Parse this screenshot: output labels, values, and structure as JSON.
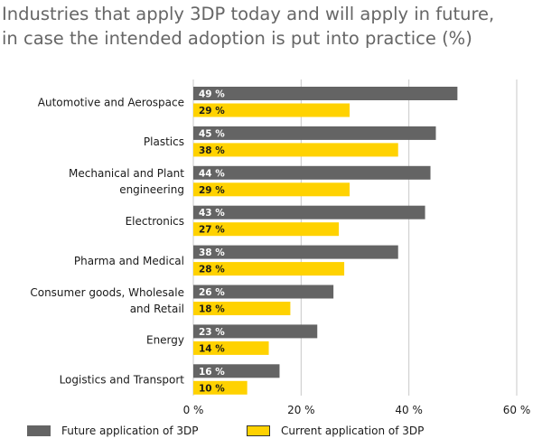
{
  "chart_data": {
    "type": "bar",
    "orientation": "horizontal",
    "title_lines": [
      "Industries that apply 3DP today and will apply in future,",
      "in case the intended adoption is put into practice (%)"
    ],
    "categories": [
      [
        "Automotive and Aerospace"
      ],
      [
        "Plastics"
      ],
      [
        "Mechanical and Plant",
        "engineering"
      ],
      [
        "Electronics"
      ],
      [
        "Pharma and Medical"
      ],
      [
        "Consumer goods, Wholesale",
        "and Retail"
      ],
      [
        "Energy"
      ],
      [
        "Logistics and Transport"
      ]
    ],
    "series": [
      {
        "name": "Future application of 3DP",
        "color": "#646464",
        "label_color": "#ffffff",
        "values": [
          49,
          45,
          44,
          43,
          38,
          26,
          23,
          16
        ],
        "labels": [
          "49 %",
          "45 %",
          "44 %",
          "43 %",
          "38 %",
          "26 %",
          "23 %",
          "16 %"
        ]
      },
      {
        "name": "Current application of 3DP",
        "color": "#ffd200",
        "label_color": "#1a1a1a",
        "values": [
          29,
          38,
          29,
          27,
          28,
          18,
          14,
          10
        ],
        "labels": [
          "29 %",
          "38 %",
          "29 %",
          "27 %",
          "28 %",
          "18 %",
          "14 %",
          "10 %"
        ]
      }
    ],
    "xlim": [
      0,
      60
    ],
    "xticks": [
      0,
      20,
      40,
      60
    ],
    "xtick_labels": [
      "0 %",
      "20 %",
      "40 %",
      "60 %"
    ],
    "grid": "vertical",
    "legend_position": "bottom"
  }
}
